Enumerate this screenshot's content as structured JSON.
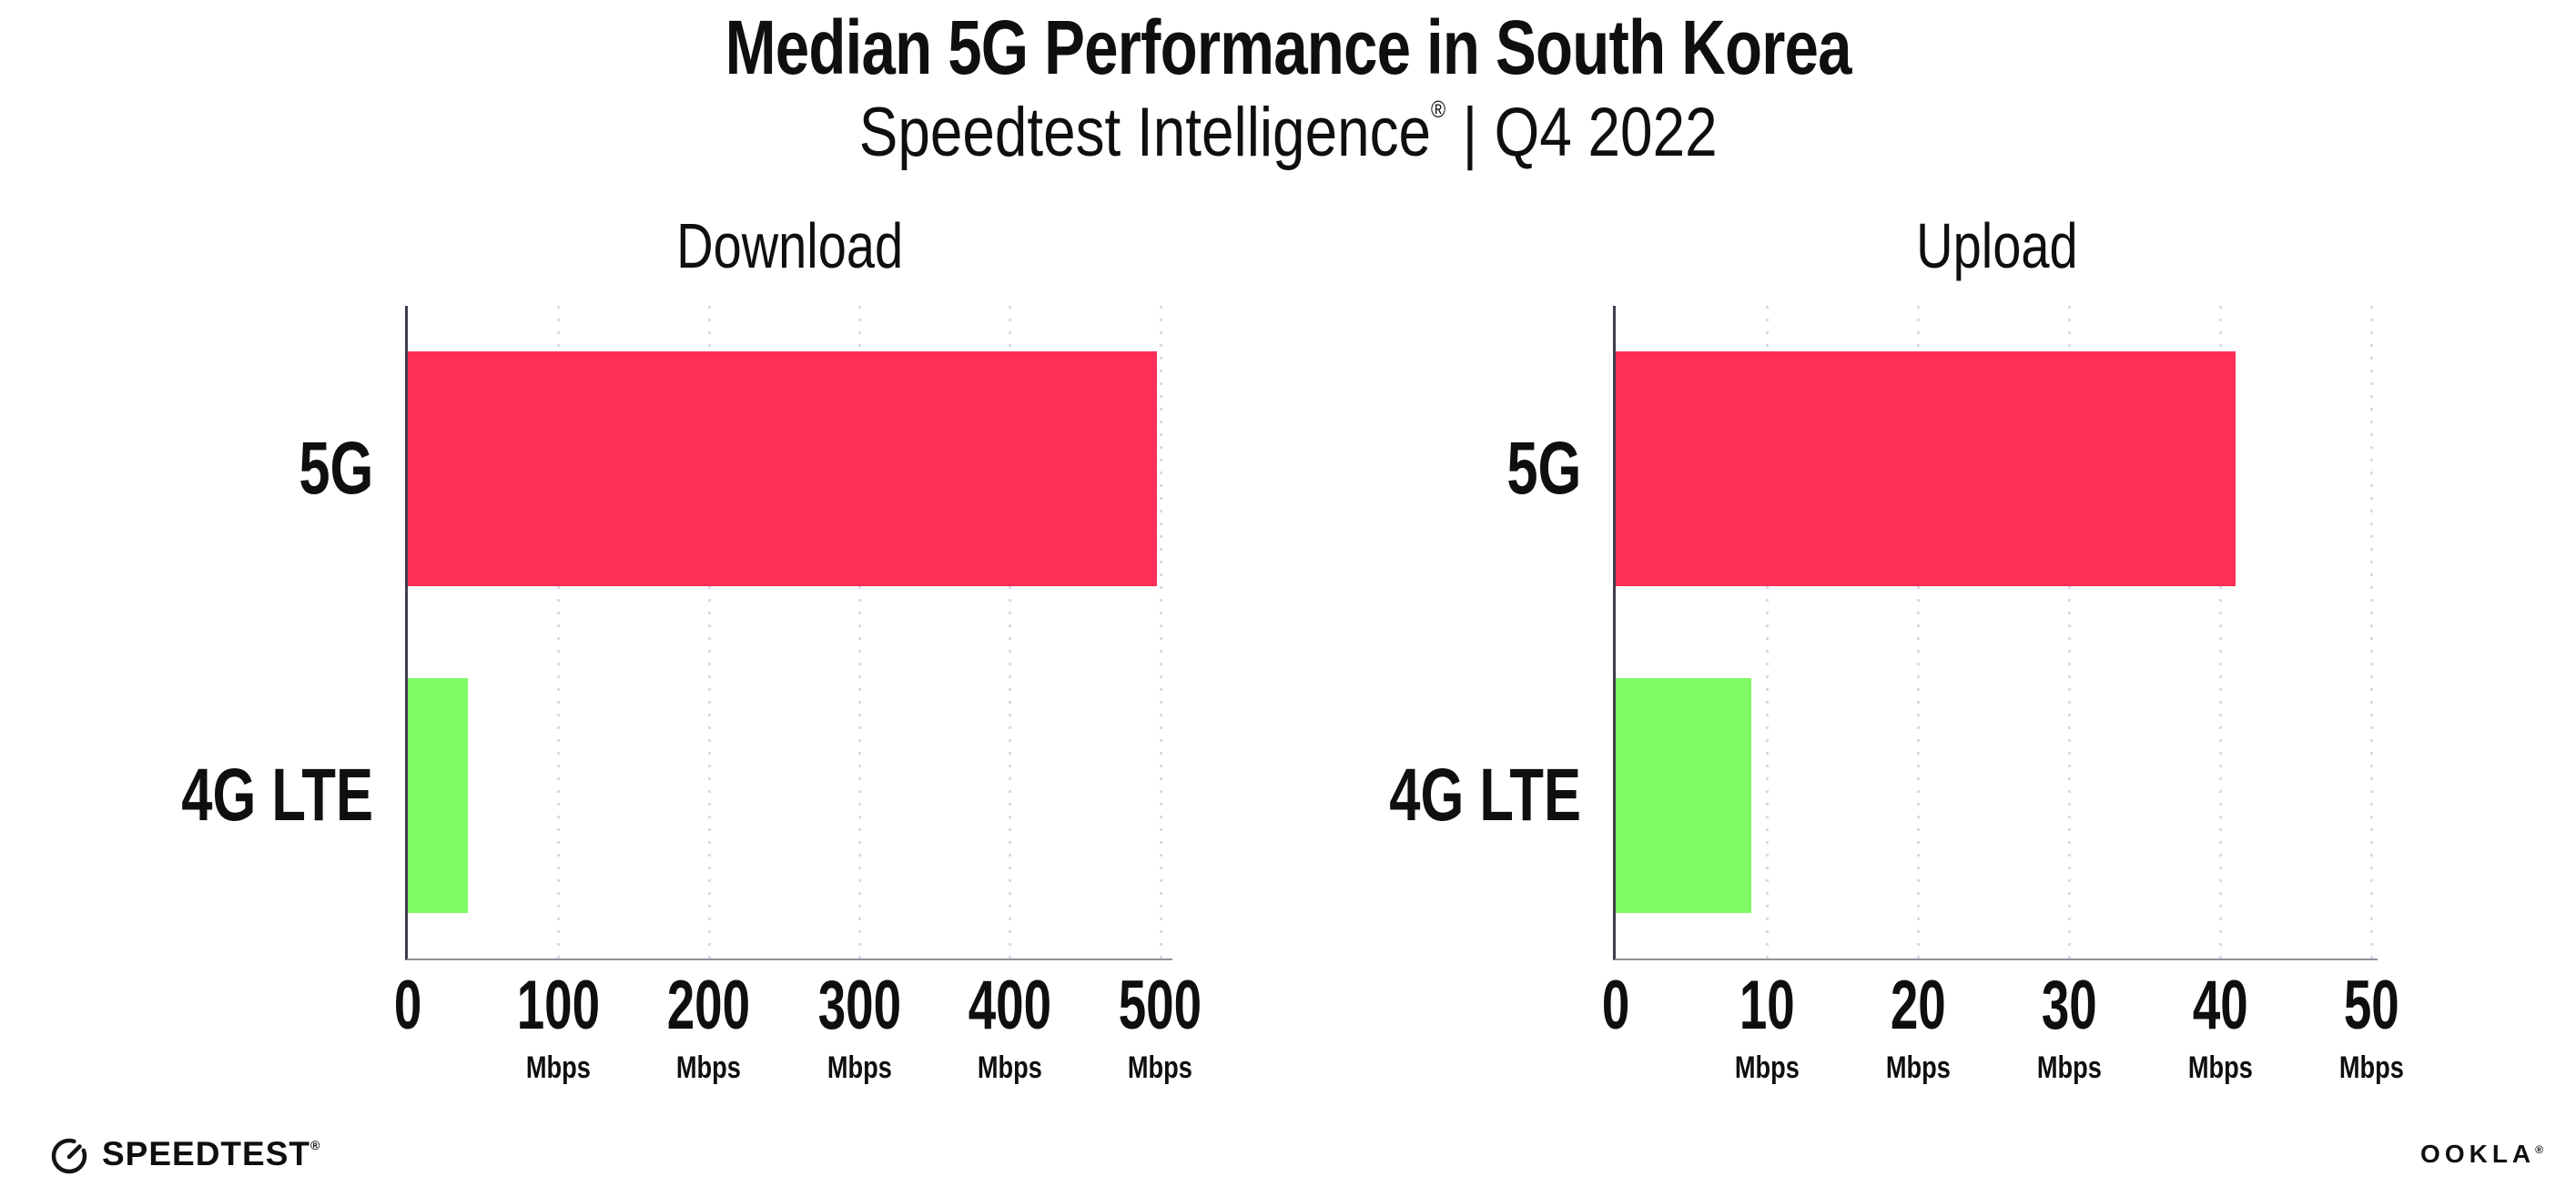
{
  "header": {
    "title": "Median 5G Performance in South Korea",
    "subtitle": {
      "brand": "Speedtest Intelligence",
      "reg": "®",
      "separator": "|",
      "period": "Q4 2022"
    }
  },
  "colors": {
    "bar_5g": "#ff2e59",
    "bar_4g_lte": "#7ffc63",
    "gridline": "#dadae4",
    "y_axis_line": "#403c4d",
    "x_axis_line": "#8f8f97",
    "text": "#0f0f12",
    "background": "#ffffff"
  },
  "chart_data": [
    {
      "type": "bar",
      "orientation": "horizontal",
      "title": "Download",
      "categories": [
        "5G",
        "4G LTE"
      ],
      "values": [
        498,
        40
      ],
      "unit": "Mbps",
      "bar_colors": [
        "#ff2e59",
        "#7ffc63"
      ],
      "xticks": [
        0,
        100,
        200,
        300,
        400,
        500
      ],
      "tick_unit": "Mbps",
      "xlim": [
        0,
        508
      ],
      "grid": "vertical-dotted",
      "legend": "none"
    },
    {
      "type": "bar",
      "orientation": "horizontal",
      "title": "Upload",
      "categories": [
        "5G",
        "4G LTE"
      ],
      "values": [
        41,
        9
      ],
      "unit": "Mbps",
      "bar_colors": [
        "#ff2e59",
        "#7ffc63"
      ],
      "xticks": [
        0,
        10,
        20,
        30,
        40,
        50
      ],
      "tick_unit": "Mbps",
      "xlim": [
        0,
        50.4
      ],
      "grid": "vertical-dotted",
      "legend": "none"
    }
  ],
  "footer": {
    "speedtest": {
      "text": "SPEEDTEST",
      "reg": "®"
    },
    "ookla": {
      "text": "OOKLA",
      "reg": "®"
    }
  }
}
